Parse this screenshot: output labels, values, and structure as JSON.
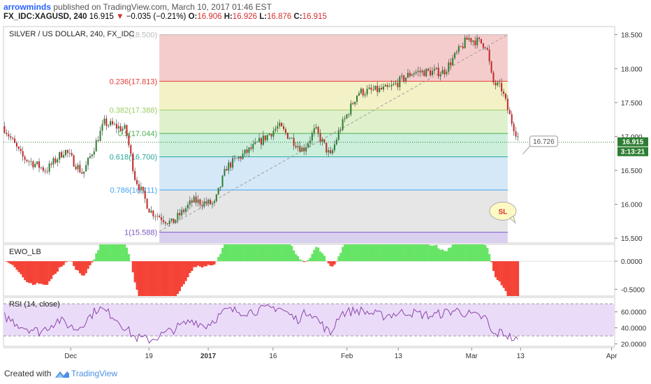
{
  "header": {
    "author": "arrowminds",
    "published_text": "published on TradingView.com, March 10, 2017 01:46 EST",
    "symbol": "FX_IDC:XAGUSD, 240",
    "price": "16.915",
    "change": "−0.035 (−0.21%)",
    "o_label": "O:",
    "o_value": "16.906",
    "h_label": "H:",
    "h_value": "16.926",
    "l_label": "L:",
    "l_value": "16.876",
    "c_label": "C:",
    "c_value": "16.915"
  },
  "footer": {
    "created_with": "Created with",
    "brand": "TradingView"
  },
  "colors": {
    "candle_up": "#2e7d32",
    "candle_down": "#c62828",
    "ewo_up": "#66e466",
    "ewo_down": "#f44336",
    "rsi_line": "#8e44ad",
    "rsi_band": "#eadcf8",
    "price_label_bg": "#2e7d32"
  },
  "chart_data": [
    {
      "type": "candlestick",
      "title": "SILVER / US DOLLAR, 240, FX_IDC",
      "x_ticks": [
        "Dec",
        "19",
        "2017",
        "16",
        "Feb",
        "13",
        "Mar",
        "13",
        "Apr"
      ],
      "y_ticks": [
        18.5,
        18.0,
        17.5,
        17.0,
        16.5,
        16.0,
        15.5
      ],
      "y_tick_labels": [
        "18.500",
        "18.000",
        "17.500",
        "17.000",
        "16.500",
        "16.000",
        "15.500"
      ],
      "ylim": [
        15.43,
        18.62
      ],
      "last_price_label": "16.915",
      "countdown_label": "3:13:21",
      "fib_levels": [
        {
          "level": "(18.500)",
          "value": 18.5,
          "color": "#bdbdbd",
          "zone": "#f5cccc"
        },
        {
          "level": "0.236(17.813)",
          "value": 17.813,
          "color": "#e53935",
          "zone": "#f3f1c6"
        },
        {
          "level": "0.382(17.388)",
          "value": 17.388,
          "color": "#9ccc65",
          "zone": "#dff1cc"
        },
        {
          "level": "0.5(17.044)",
          "value": 17.044,
          "color": "#4caf50",
          "zone": "#ccefdc"
        },
        {
          "level": "0.618(16.700)",
          "value": 16.7,
          "color": "#26a69a",
          "zone": "#d5e8f7"
        },
        {
          "level": "0.786(16.211)",
          "value": 16.211,
          "color": "#42a5f5",
          "zone": "#e6e6e6"
        },
        {
          "level": "1(15.588)",
          "value": 15.588,
          "color": "#7e57c2",
          "zone": "#d9d0ef"
        }
      ],
      "annotations": [
        {
          "text": "16.726",
          "type": "callout"
        },
        {
          "text": "SL",
          "type": "bubble"
        }
      ],
      "series_path": [
        [
          0,
          17.15
        ],
        [
          0.03,
          16.7
        ],
        [
          0.07,
          16.5
        ],
        [
          0.1,
          16.8
        ],
        [
          0.13,
          16.45
        ],
        [
          0.165,
          17.2
        ],
        [
          0.2,
          17.1
        ],
        [
          0.215,
          16.4
        ],
        [
          0.24,
          15.9
        ],
        [
          0.275,
          15.72
        ],
        [
          0.31,
          16.05
        ],
        [
          0.345,
          16.0
        ],
        [
          0.365,
          16.55
        ],
        [
          0.41,
          16.85
        ],
        [
          0.45,
          17.15
        ],
        [
          0.49,
          16.8
        ],
        [
          0.51,
          17.1
        ],
        [
          0.535,
          16.7
        ],
        [
          0.55,
          17.1
        ],
        [
          0.58,
          17.65
        ],
        [
          0.63,
          17.7
        ],
        [
          0.67,
          17.95
        ],
        [
          0.72,
          17.95
        ],
        [
          0.76,
          18.45
        ],
        [
          0.79,
          18.35
        ],
        [
          0.8,
          17.8
        ],
        [
          0.815,
          17.7
        ],
        [
          0.83,
          17.25
        ],
        [
          0.845,
          16.92
        ]
      ]
    },
    {
      "type": "histogram",
      "title": "EWO_LB",
      "y_ticks": [
        0.0,
        -0.5
      ],
      "y_tick_labels": [
        "0.0000",
        "-0.5000"
      ],
      "ylim": [
        -0.62,
        0.3
      ]
    },
    {
      "type": "line",
      "title": "RSI (14, close)",
      "y_ticks": [
        60,
        40,
        20
      ],
      "y_tick_labels": [
        "60.0000",
        "40.0000",
        "20.0000"
      ],
      "ylim": [
        17,
        78
      ],
      "band": [
        30,
        70
      ],
      "series_path": [
        [
          0,
          55
        ],
        [
          0.03,
          42
        ],
        [
          0.06,
          35
        ],
        [
          0.09,
          50
        ],
        [
          0.12,
          38
        ],
        [
          0.155,
          65
        ],
        [
          0.18,
          55
        ],
        [
          0.215,
          28
        ],
        [
          0.24,
          25
        ],
        [
          0.27,
          35
        ],
        [
          0.31,
          50
        ],
        [
          0.33,
          42
        ],
        [
          0.365,
          62
        ],
        [
          0.4,
          60
        ],
        [
          0.45,
          66
        ],
        [
          0.48,
          50
        ],
        [
          0.5,
          62
        ],
        [
          0.535,
          32
        ],
        [
          0.55,
          58
        ],
        [
          0.58,
          62
        ],
        [
          0.62,
          55
        ],
        [
          0.66,
          60
        ],
        [
          0.7,
          55
        ],
        [
          0.74,
          62
        ],
        [
          0.77,
          55
        ],
        [
          0.79,
          52
        ],
        [
          0.8,
          30
        ],
        [
          0.815,
          35
        ],
        [
          0.83,
          28
        ],
        [
          0.845,
          22
        ]
      ]
    }
  ]
}
